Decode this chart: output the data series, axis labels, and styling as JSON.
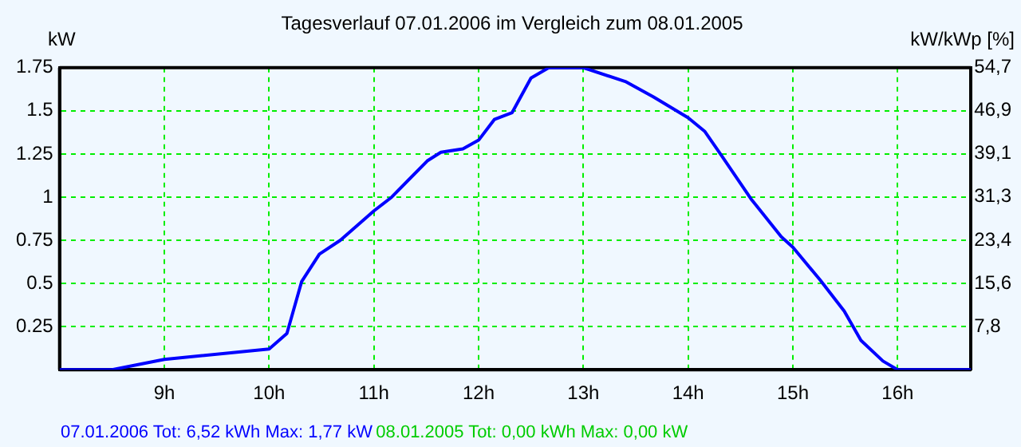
{
  "chart_data": {
    "type": "line",
    "title": "Tagesverlauf 07.01.2006 im Vergleich zum 08.01.2005",
    "ylabel": "kW",
    "y2label": "kW/kWp [%]",
    "x": [
      8,
      8.5,
      9,
      10,
      10.17,
      10.31,
      10.48,
      10.68,
      11,
      11.17,
      11.51,
      11.64,
      11.85,
      12,
      12.15,
      12.32,
      12.5,
      12.67,
      13,
      13.4,
      13.67,
      14,
      14.16,
      14.32,
      14.6,
      14.89,
      15,
      15.26,
      15.49,
      15.65,
      15.86,
      16,
      16.7
    ],
    "series": [
      {
        "color": "#0000ff",
        "values": [
          0,
          0,
          0.06,
          0.12,
          0.21,
          0.51,
          0.67,
          0.75,
          0.92,
          1.0,
          1.21,
          1.26,
          1.28,
          1.33,
          1.45,
          1.49,
          1.69,
          1.75,
          1.75,
          1.67,
          1.58,
          1.46,
          1.38,
          1.24,
          0.99,
          0.77,
          0.71,
          0.52,
          0.34,
          0.17,
          0.05,
          0,
          0
        ]
      }
    ],
    "xlim": [
      8,
      16.7
    ],
    "xticks": [
      {
        "value": 9,
        "label": "9h"
      },
      {
        "value": 10,
        "label": "10h"
      },
      {
        "value": 11,
        "label": "11h"
      },
      {
        "value": 12,
        "label": "12h"
      },
      {
        "value": 13,
        "label": "13h"
      },
      {
        "value": 14,
        "label": "14h"
      },
      {
        "value": 15,
        "label": "15h"
      },
      {
        "value": 16,
        "label": "16h"
      }
    ],
    "ylim": [
      0,
      1.75
    ],
    "yticks": [
      0.25,
      0.5,
      0.75,
      1,
      1.25,
      1.5,
      1.75
    ],
    "y2lim": [
      0,
      54.7
    ],
    "y2ticks": [
      {
        "value": 7.8,
        "label": "7,8"
      },
      {
        "value": 15.6,
        "label": "15,6"
      },
      {
        "value": 23.4,
        "label": "23,4"
      },
      {
        "value": 31.3,
        "label": "31,3"
      },
      {
        "value": 39.1,
        "label": "39,1"
      },
      {
        "value": 46.9,
        "label": "46,9"
      },
      {
        "value": 54.7,
        "label": "54,7"
      }
    ],
    "annotations": [
      "07.01.2006 Tot: 6,52 kWh Max: 1,77 kW",
      "08.01.2005 Tot: 0,00 kWh Max: 0,00 kW"
    ],
    "grid": true,
    "legend": false,
    "marker": "none",
    "line_style": "solid"
  }
}
